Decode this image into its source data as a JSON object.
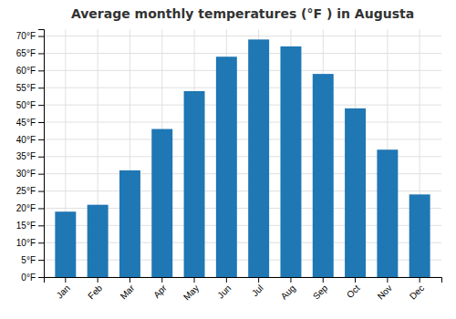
{
  "chart_data": {
    "type": "bar",
    "title": "Average monthly temperatures (°F ) in Augusta",
    "categories": [
      "Jan",
      "Feb",
      "Mar",
      "Apr",
      "May",
      "Jun",
      "Jul",
      "Aug",
      "Sep",
      "Oct",
      "Nov",
      "Dec"
    ],
    "values": [
      19,
      21,
      31,
      43,
      54,
      64,
      69,
      67,
      59,
      49,
      37,
      24
    ],
    "ylim": [
      0,
      72
    ],
    "yticks": [
      {
        "value": 0,
        "label": "0°F"
      },
      {
        "value": 5,
        "label": "5°F"
      },
      {
        "value": 10,
        "label": "10°F"
      },
      {
        "value": 15,
        "label": "15°F"
      },
      {
        "value": 20,
        "label": "20°F"
      },
      {
        "value": 25,
        "label": "25°F"
      },
      {
        "value": 30,
        "label": "30°F"
      },
      {
        "value": 35,
        "label": "35°F"
      },
      {
        "value": 40,
        "label": "40°F"
      },
      {
        "value": 45,
        "label": "45°F"
      },
      {
        "value": 50,
        "label": "50°F"
      },
      {
        "value": 55,
        "label": "55°F"
      },
      {
        "value": 60,
        "label": "60°F"
      },
      {
        "value": 65,
        "label": "65°F"
      },
      {
        "value": 70,
        "label": "70°F"
      }
    ],
    "grid": true
  }
}
